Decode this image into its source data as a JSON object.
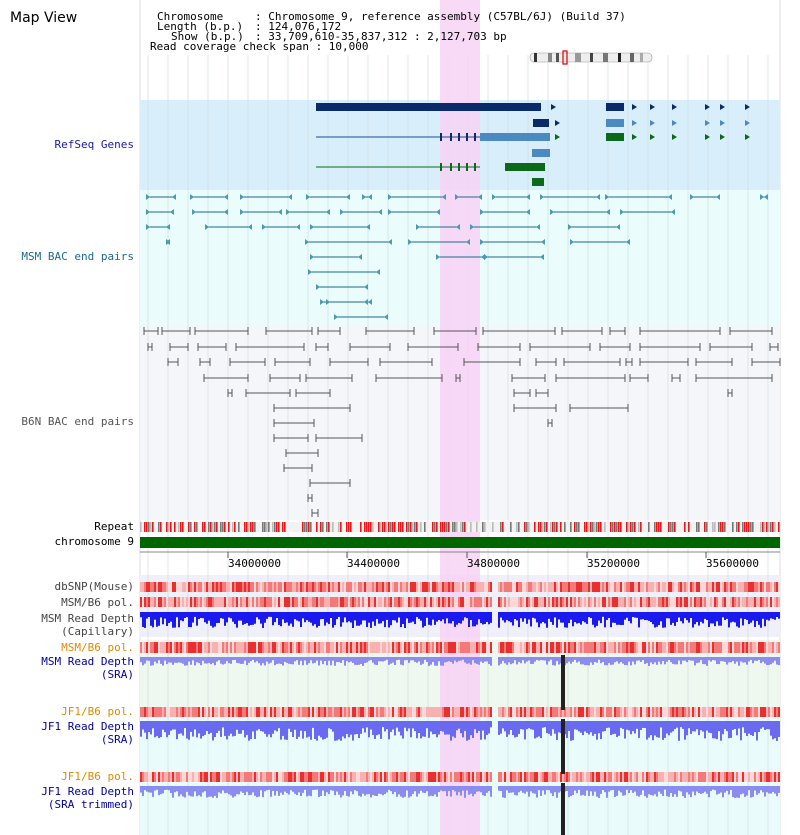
{
  "title": "Map View",
  "info": {
    "chromosome_key": "Chromosome",
    "chromosome_val": ": Chromosome 9, reference assembly (C57BL/6J) (Build 37)",
    "length_key": "Length (b.p.)",
    "length_val": ": 124,076,172",
    "show_key": "Show (b.p.)",
    "show_val": ": 33,709,610-35,837,312 : 2,127,703 bp",
    "coverage": "Read coverage check span : 10,000"
  },
  "tracks": {
    "refseq": "RefSeq Genes",
    "msm_bac": "MSM BAC end pairs",
    "b6n_bac": "B6N BAC end pairs",
    "repeat": "Repeat",
    "chromosome": "chromosome 9",
    "dbsnp": "dbSNP(Mouse)",
    "msm_pol_1": "MSM/B6 pol.",
    "msm_depth_cap_1": "MSM Read Depth",
    "msm_depth_cap_2": "(Capillary)",
    "msm_pol_2": "MSM/B6 pol.",
    "msm_depth_sra_1": "MSM Read Depth",
    "msm_depth_sra_2": "(SRA)",
    "jf1_pol_1": "JF1/B6 pol.",
    "jf1_depth_sra_1": "JF1 Read Depth",
    "jf1_depth_sra_2": "(SRA)",
    "jf1_pol_2": "JF1/B6 pol.",
    "jf1_depth_trim_1": "JF1 Read Depth",
    "jf1_depth_trim_2": "(SRA trimmed)"
  },
  "ruler": {
    "ticks": [
      "34000000",
      "34400000",
      "34800000",
      "35200000",
      "35600000"
    ]
  },
  "colors": {
    "refseq_label": "#1a1aa0",
    "msm_label": "#1a6a8a",
    "b6n_label": "#555555",
    "pol_label": "#e08a00",
    "depth_label": "#0000a0",
    "highlight": "#f7d2f5",
    "chromosome_bar": "#006600"
  }
}
